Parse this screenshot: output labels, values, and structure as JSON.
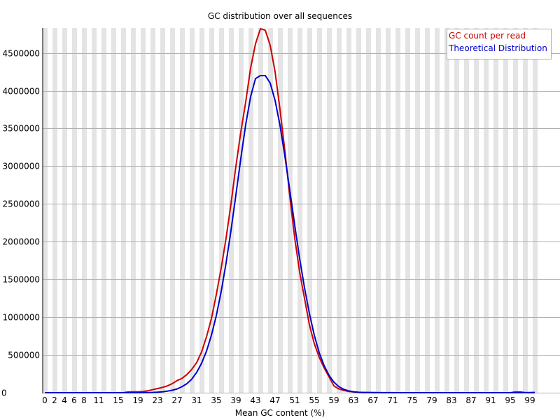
{
  "chart_data": {
    "type": "line",
    "title": "GC distribution over all sequences",
    "xlabel": "Mean GC content (%)",
    "ylabel": "",
    "xlim": [
      0,
      100
    ],
    "ylim": [
      0,
      4830000
    ],
    "grid": {
      "horizontal": true,
      "vertical_stripes": true
    },
    "legend_position": "top-right",
    "x_tick_labels": [
      "0",
      "2",
      "4",
      "6",
      "8",
      "11",
      "15",
      "19",
      "23",
      "27",
      "31",
      "35",
      "39",
      "43",
      "47",
      "51",
      "55",
      "59",
      "63",
      "67",
      "71",
      "75",
      "79",
      "83",
      "87",
      "91",
      "95",
      "99"
    ],
    "y_ticks": [
      0,
      500000,
      1000000,
      1500000,
      2000000,
      2500000,
      3000000,
      3500000,
      4000000,
      4500000
    ],
    "y_tick_labels": [
      "0",
      "500000",
      "1000000",
      "1500000",
      "2000000",
      "2500000",
      "3000000",
      "3500000",
      "4000000",
      "4500000"
    ],
    "x": [
      0,
      1,
      2,
      3,
      4,
      5,
      6,
      7,
      8,
      9,
      10,
      11,
      12,
      13,
      14,
      15,
      16,
      17,
      18,
      19,
      20,
      21,
      22,
      23,
      24,
      25,
      26,
      27,
      28,
      29,
      30,
      31,
      32,
      33,
      34,
      35,
      36,
      37,
      38,
      39,
      40,
      41,
      42,
      43,
      44,
      45,
      46,
      47,
      48,
      49,
      50,
      51,
      52,
      53,
      54,
      55,
      56,
      57,
      58,
      59,
      60,
      61,
      62,
      63,
      64,
      65,
      66,
      67,
      68,
      69,
      70,
      71,
      72,
      73,
      74,
      75,
      76,
      77,
      78,
      79,
      80,
      81,
      82,
      83,
      84,
      85,
      86,
      87,
      88,
      89,
      90,
      91,
      92,
      93,
      94,
      95,
      96,
      97,
      98,
      99,
      100
    ],
    "series": [
      {
        "name": "GC count per read",
        "color": "#cc0000",
        "values": [
          0,
          0,
          0,
          0,
          0,
          0,
          0,
          0,
          0,
          0,
          0,
          0,
          0,
          0,
          0,
          0,
          0,
          10000,
          12000,
          12000,
          15000,
          25000,
          40000,
          55000,
          70000,
          90000,
          120000,
          160000,
          190000,
          240000,
          310000,
          400000,
          540000,
          740000,
          980000,
          1300000,
          1650000,
          2050000,
          2500000,
          3000000,
          3450000,
          3850000,
          4300000,
          4620000,
          4820000,
          4800000,
          4600000,
          4250000,
          3750000,
          3200000,
          2600000,
          2050000,
          1600000,
          1250000,
          900000,
          650000,
          470000,
          330000,
          210000,
          90000,
          50000,
          30000,
          18000,
          10000,
          6000,
          4000,
          3000,
          2000,
          1500,
          1000,
          800,
          500,
          400,
          300,
          200,
          200,
          200,
          200,
          200,
          200,
          200,
          200,
          200,
          200,
          200,
          200,
          200,
          200,
          200,
          200,
          200,
          200,
          200,
          200,
          200,
          200,
          10000,
          10000,
          3000,
          3000,
          5000
        ]
      },
      {
        "name": "Theoretical Distribution",
        "color": "#0000cc",
        "values": [
          0,
          0,
          0,
          0,
          0,
          0,
          0,
          0,
          0,
          0,
          0,
          0,
          0,
          0,
          0,
          0,
          0,
          0,
          0,
          0,
          1000,
          2000,
          4000,
          7000,
          12000,
          20000,
          32000,
          50000,
          80000,
          120000,
          180000,
          270000,
          390000,
          550000,
          760000,
          1020000,
          1340000,
          1720000,
          2150000,
          2620000,
          3100000,
          3550000,
          3920000,
          4160000,
          4200000,
          4200000,
          4100000,
          3870000,
          3540000,
          3130000,
          2680000,
          2220000,
          1780000,
          1390000,
          1050000,
          760000,
          530000,
          360000,
          230000,
          140000,
          80000,
          45000,
          24000,
          12000,
          6000,
          3000,
          1500,
          800,
          400,
          200,
          100,
          50,
          0,
          0,
          0,
          0,
          0,
          0,
          0,
          0,
          0,
          0,
          0,
          0,
          0,
          0,
          0,
          0,
          0,
          0,
          0,
          0,
          0,
          0,
          0,
          0,
          0,
          0,
          0,
          0,
          0
        ]
      }
    ]
  },
  "legend": {
    "items": [
      {
        "label": "GC count per read",
        "color": "#cc0000"
      },
      {
        "label": "Theoretical Distribution",
        "color": "#0000cc"
      }
    ]
  },
  "colors": {
    "stripe": "#e4e4e4",
    "gridline": "#b0b0b0",
    "axis": "#000000"
  }
}
